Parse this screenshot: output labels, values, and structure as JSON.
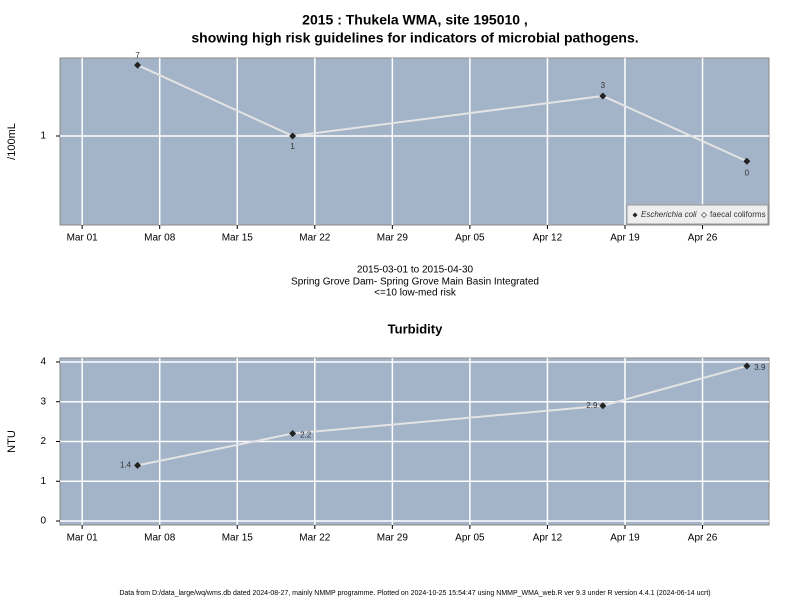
{
  "title": "2015 : Thukela WMA, site 195010 ,",
  "subtitle": "showing high risk guidelines for indicators of microbial pathogens.",
  "caption": [
    "2015-03-01 to 2015-04-30",
    "Spring Grove Dam- Spring Grove Main Basin Integrated",
    "<=10 low-med risk"
  ],
  "footer": "Data from D:/data_large/wq/wms.db dated 2024-08-27, mainly NMMP programme. Plotted on 2024-10-25 15:54:47 using NMMP_WMA_web.R ver 9.3 under R version 4.4.1 (2024-06-14 ucrt)",
  "chart_data": [
    {
      "type": "line",
      "ylabel": "/100mL",
      "ylog": true,
      "x": [
        "Mar 06",
        "Mar 20",
        "Apr 17",
        "Apr 30"
      ],
      "xlim": [
        "Feb 27",
        "May 02"
      ],
      "xticks": [
        "Mar 01",
        "Mar 08",
        "Mar 15",
        "Mar 22",
        "Mar 29",
        "Apr 05",
        "Apr 12",
        "Apr 19",
        "Apr 26"
      ],
      "ylim": [
        0.087,
        8.5
      ],
      "yticks": [
        1
      ],
      "grid": true,
      "background": "#a3b3c8",
      "line_color": "#e4e4e4",
      "series": [
        {
          "name": "Escherichia coli",
          "color": "#222222",
          "values": [
            7,
            1,
            3,
            0.5
          ],
          "value_labels": [
            "7",
            "1",
            "3",
            "0"
          ]
        },
        {
          "name": "faecal coliforms",
          "color": "#ffffff",
          "values": [
            null,
            null,
            null,
            null
          ]
        }
      ],
      "legend": "bottom right"
    },
    {
      "type": "line",
      "title": "Turbidity",
      "ylabel": "NTU",
      "ylog": false,
      "x": [
        "Mar 06",
        "Mar 20",
        "Apr 17",
        "Apr 30"
      ],
      "xlim": [
        "Feb 27",
        "May 02"
      ],
      "xticks": [
        "Mar 01",
        "Mar 08",
        "Mar 15",
        "Mar 22",
        "Mar 29",
        "Apr 05",
        "Apr 12",
        "Apr 19",
        "Apr 26"
      ],
      "ylim": [
        -0.1,
        4.1
      ],
      "yticks": [
        0,
        1,
        2,
        3,
        4
      ],
      "grid": true,
      "background": "#a3b3c8",
      "line_color": "#e4e4e4",
      "series": [
        {
          "color": "#222222",
          "values": [
            1.4,
            2.2,
            2.9,
            3.9
          ]
        }
      ]
    }
  ]
}
